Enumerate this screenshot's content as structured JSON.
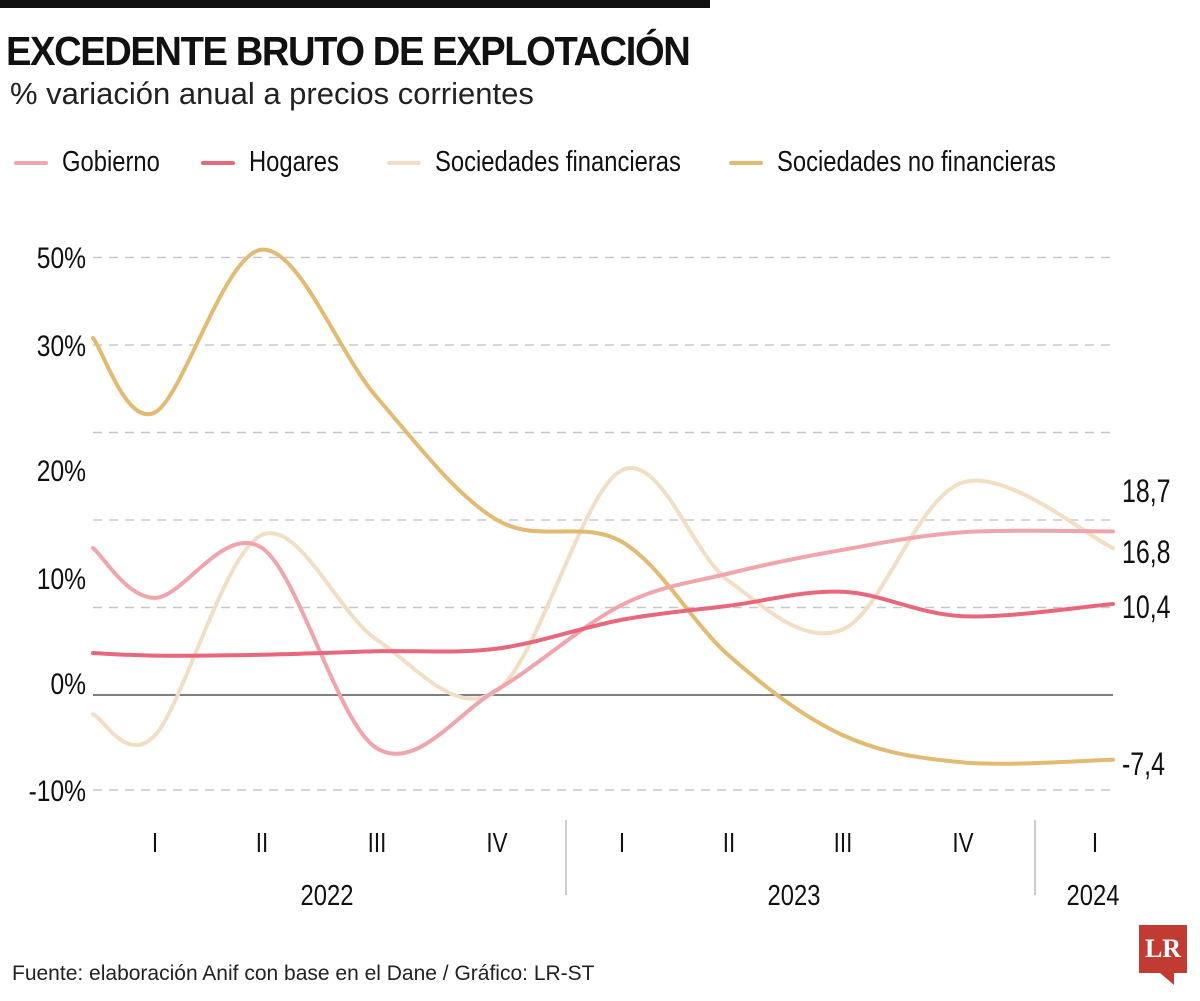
{
  "header": {
    "title": "EXCEDENTE BRUTO DE EXPLOTACIÓN",
    "subtitle": "% variación anual a precios corrientes"
  },
  "footer": {
    "source": "Fuente: elaboración Anif con base en el Dane / Gráfico: LR-ST",
    "logo": "LR"
  },
  "chart_data": {
    "type": "line",
    "title": "EXCEDENTE BRUTO DE EXPLOTACIÓN",
    "subtitle": "% variación anual a precios corrientes",
    "xlabel": "",
    "ylabel": "",
    "ylim": [
      -10,
      50
    ],
    "grid": true,
    "legend_position": "top",
    "y_tick_labels": [
      "50%",
      "30%",
      "20%",
      "10%",
      "0%",
      "-10%"
    ],
    "categories": [
      "",
      "I",
      "II",
      "III",
      "IV",
      "I",
      "II",
      "III",
      "IV",
      "I"
    ],
    "years": [
      "2022",
      "2023",
      "2024"
    ],
    "series": [
      {
        "name": "Gobierno",
        "color": "#F0A5AC",
        "values": [
          16.8,
          11.1,
          16.8,
          -6.1,
          0.6,
          10.3,
          13.9,
          16.6,
          18.6,
          18.7
        ],
        "end_label": "18,7"
      },
      {
        "name": "Hogares",
        "color": "#E9677B",
        "values": [
          4.8,
          4.5,
          4.6,
          5.0,
          5.3,
          8.6,
          10.2,
          11.8,
          9.0,
          10.4
        ],
        "end_label": "10,4"
      },
      {
        "name": "Sociedades financieras",
        "color": "#F2DEC4",
        "values": [
          -2.2,
          -4.6,
          18.3,
          6.3,
          0.5,
          25.7,
          13.0,
          7.5,
          24.3,
          16.8
        ],
        "end_label": "16,8"
      },
      {
        "name": "Sociedades no financieras",
        "color": "#E2BA72",
        "values": [
          40.8,
          32.3,
          50.9,
          34.0,
          20.0,
          17.5,
          4.5,
          -4.6,
          -7.7,
          -7.4
        ],
        "end_label": "-7,4"
      }
    ]
  }
}
